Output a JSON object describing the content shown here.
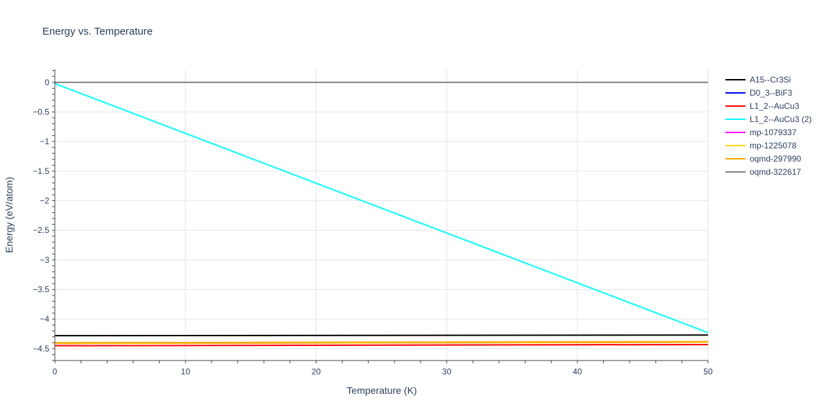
{
  "chart_data": {
    "type": "line",
    "title": "Energy vs. Temperature",
    "xlabel": "Temperature (K)",
    "ylabel": "Energy (eV/atom)",
    "xlim": [
      0,
      50
    ],
    "ylim": [
      -4.7,
      0.22
    ],
    "x_ticks": [
      0,
      10,
      20,
      30,
      40,
      50
    ],
    "x_tick_labels": [
      "0",
      "10",
      "20",
      "30",
      "40",
      "50"
    ],
    "y_ticks": [
      0,
      -0.5,
      -1,
      -1.5,
      -2,
      -2.5,
      -3,
      -3.5,
      -4,
      -4.5
    ],
    "y_tick_labels": [
      "0",
      "−0.5",
      "−1",
      "−1.5",
      "−2",
      "−2.5",
      "−3",
      "−3.5",
      "−4",
      "−4.5"
    ],
    "grid": true,
    "legend_position": "right",
    "series": [
      {
        "name": "A15--Cr3Si",
        "color": "#000000",
        "x": [
          0,
          50
        ],
        "y": [
          -4.28,
          -4.27
        ]
      },
      {
        "name": "D0_3--BiF3",
        "color": "#0000ff",
        "x": [
          0,
          50
        ],
        "y": [
          -4.41,
          -4.39
        ]
      },
      {
        "name": "L1_2--AuCu3",
        "color": "#ff0000",
        "x": [
          0,
          50
        ],
        "y": [
          -4.45,
          -4.43
        ]
      },
      {
        "name": "L1_2--AuCu3 (2)",
        "color": "#00ffff",
        "x": [
          0,
          50
        ],
        "y": [
          -0.02,
          -4.23
        ]
      },
      {
        "name": "mp-1079337",
        "color": "#ff00ff",
        "x": [
          0,
          50
        ],
        "y": [
          -4.41,
          -4.39
        ]
      },
      {
        "name": "mp-1225078",
        "color": "#ffd700",
        "x": [
          0,
          50
        ],
        "y": [
          -4.41,
          -4.39
        ]
      },
      {
        "name": "oqmd-297990",
        "color": "#ffa500",
        "x": [
          0,
          50
        ],
        "y": [
          -4.4,
          -4.38
        ]
      },
      {
        "name": "oqmd-322617",
        "color": "#808080",
        "x": [
          0,
          50
        ],
        "y": [
          0.0,
          0.0
        ]
      }
    ]
  }
}
